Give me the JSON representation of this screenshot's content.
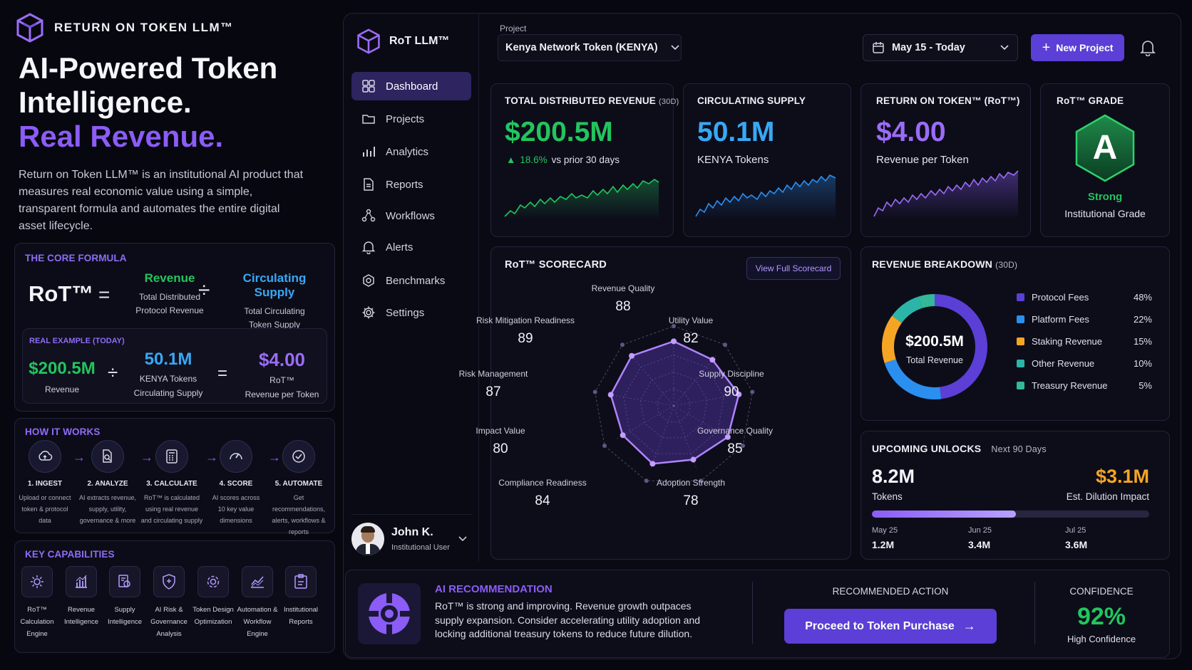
{
  "brand": {
    "name": "RETURN ON TOKEN LLM™"
  },
  "hero": {
    "line1": "AI-Powered Token",
    "line2": "Intelligence.",
    "line3": "Real Revenue.",
    "description": "Return on Token LLM™ is an institutional AI product that measures real economic value using a simple, transparent formula and automates the entire digital asset lifecycle."
  },
  "formula": {
    "title": "THE CORE FORMULA",
    "rot": "RoT™",
    "eq": "=",
    "div": "÷",
    "revenue_label": "Revenue",
    "revenue_desc1": "Total Distributed",
    "revenue_desc2": "Protocol Revenue",
    "supply_label": "Circulating Supply",
    "supply_desc1": "Total Circulating",
    "supply_desc2": "Token Supply",
    "example_title": "REAL EXAMPLE (TODAY)",
    "ex_revenue": "$200.5M",
    "ex_revenue_label": "Revenue",
    "ex_supply": "50.1M",
    "ex_supply_label1": "KENYA Tokens",
    "ex_supply_label2": "Circulating Supply",
    "ex_rot": "$4.00",
    "ex_rot_label1": "RoT™",
    "ex_rot_label2": "Revenue per Token"
  },
  "how": {
    "title": "HOW IT WORKS",
    "steps": [
      {
        "title": "1. INGEST",
        "d1": "Upload or connect",
        "d2": "token & protocol",
        "d3": "data",
        "icon": "cloud-upload-icon"
      },
      {
        "title": "2. ANALYZE",
        "d1": "AI extracts revenue,",
        "d2": "supply, utility,",
        "d3": "governance & more",
        "icon": "document-search-icon"
      },
      {
        "title": "3. CALCULATE",
        "d1": "RoT™ is calculated",
        "d2": "using real revenue",
        "d3": "and circulating supply",
        "icon": "calculator-icon"
      },
      {
        "title": "4. SCORE",
        "d1": "AI scores across",
        "d2": "10 key value",
        "d3": "dimensions",
        "icon": "gauge-icon"
      },
      {
        "title": "5. AUTOMATE",
        "d1": "Get recommendations,",
        "d2": "alerts, workflows &",
        "d3": "reports",
        "icon": "check-circle-icon"
      }
    ]
  },
  "capabilities": {
    "title": "KEY CAPABILITIES",
    "items": [
      {
        "l1": "RoT™",
        "l2": "Calculation",
        "l3": "Engine",
        "icon": "engine-icon"
      },
      {
        "l1": "Revenue",
        "l2": "Intelligence",
        "l3": "",
        "icon": "bar-chart-icon"
      },
      {
        "l1": "Supply",
        "l2": "Intelligence",
        "l3": "",
        "icon": "supply-icon"
      },
      {
        "l1": "AI Risk &",
        "l2": "Governance",
        "l3": "Analysis",
        "icon": "shield-icon"
      },
      {
        "l1": "Token Design",
        "l2": "Optimization",
        "l3": "",
        "icon": "gear-icon"
      },
      {
        "l1": "Automation &",
        "l2": "Workflow",
        "l3": "Engine",
        "icon": "trend-icon"
      },
      {
        "l1": "Institutional",
        "l2": "Reports",
        "l3": "",
        "icon": "report-icon"
      }
    ]
  },
  "app": {
    "name": "RoT LLM™",
    "project_label": "Project",
    "project_value": "Kenya Network Token (KENYA)",
    "date_range": "May 15 - Today",
    "new_project": "New Project"
  },
  "nav": [
    "Dashboard",
    "Projects",
    "Analytics",
    "Reports",
    "Workflows",
    "Alerts",
    "Benchmarks",
    "Settings"
  ],
  "user": {
    "name": "John K.",
    "role": "Institutional User"
  },
  "kpi": {
    "revenue_title": "TOTAL DISTRIBUTED REVENUE",
    "revenue_period": "(30D)",
    "revenue_value": "$200.5M",
    "revenue_change": "18.6%",
    "revenue_change_label": "vs prior 30 days",
    "supply_title": "CIRCULATING SUPPLY",
    "supply_value": "50.1M",
    "supply_label": "KENYA Tokens",
    "rot_title": "RETURN ON TOKEN™ (RoT™)",
    "rot_value": "$4.00",
    "rot_label": "Revenue per Token",
    "grade_title": "RoT™ GRADE",
    "grade_value": "A",
    "grade_label1": "Strong",
    "grade_label2": "Institutional Grade"
  },
  "scorecard": {
    "title": "RoT™ SCORECARD",
    "button": "View Full Scorecard",
    "dimensions": [
      {
        "label": "Revenue Quality",
        "value": 88
      },
      {
        "label": "Utility Value",
        "value": 82
      },
      {
        "label": "Supply Discipline",
        "value": 90
      },
      {
        "label": "Governance Quality",
        "value": 85
      },
      {
        "label": "Adoption Strength",
        "value": 78
      },
      {
        "label": "Compliance Readiness",
        "value": 84
      },
      {
        "label": "Impact Value",
        "value": 80
      },
      {
        "label": "Risk Management",
        "value": 87
      },
      {
        "label": "Risk Mitigation Readiness",
        "value": 89
      }
    ]
  },
  "breakdown": {
    "title": "REVENUE BREAKDOWN",
    "period": "(30D)",
    "center_value": "$200.5M",
    "center_label": "Total Revenue",
    "items": [
      {
        "name": "Protocol Fees",
        "pct": "48%",
        "share": 48,
        "color": "#5b3fd6"
      },
      {
        "name": "Platform Fees",
        "pct": "22%",
        "share": 22,
        "color": "#2b8ff0"
      },
      {
        "name": "Staking Revenue",
        "pct": "15%",
        "share": 15,
        "color": "#f5a524"
      },
      {
        "name": "Other Revenue",
        "pct": "10%",
        "share": 10,
        "color": "#2bb5a8"
      },
      {
        "name": "Treasury Revenue",
        "pct": "5%",
        "share": 5,
        "color": "#34b89a"
      }
    ]
  },
  "unlocks": {
    "title": "UPCOMING UNLOCKS",
    "period": "Next 90 Days",
    "tokens_value": "8.2M",
    "tokens_label": "Tokens",
    "impact_value": "$3.1M",
    "impact_label": "Est. Dilution Impact",
    "progress": 0.52,
    "schedule": [
      {
        "date": "May 25",
        "amount": "1.2M"
      },
      {
        "date": "Jun 25",
        "amount": "3.4M"
      },
      {
        "date": "Jul 25",
        "amount": "3.6M"
      }
    ]
  },
  "recommendation": {
    "title": "AI RECOMMENDATION",
    "text": "RoT™ is strong and improving. Revenue growth outpaces supply expansion. Consider accelerating utility adoption and locking additional treasury tokens to reduce future dilution.",
    "action_title": "RECOMMENDED ACTION",
    "action_button": "Proceed to Token Purchase",
    "confidence_title": "CONFIDENCE",
    "confidence_value": "92%",
    "confidence_label": "High Confidence"
  },
  "colors": {
    "accent": "#8b5cf6",
    "green": "#22c55e",
    "blue": "#38a8f5",
    "orange": "#f5a524",
    "bg": "#07070f"
  }
}
